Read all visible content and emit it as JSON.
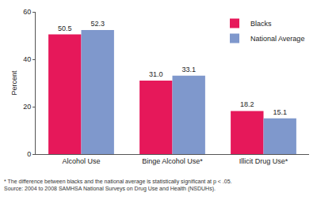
{
  "chart_data": {
    "type": "bar",
    "categories": [
      "Alcohol Use",
      "Binge Alcohol Use*",
      "Illicit Drug Use*"
    ],
    "series": [
      {
        "name": "Blacks",
        "color": "#e6185a",
        "values": [
          50.5,
          31.0,
          18.2
        ],
        "value_labels": [
          "50.5",
          "31.0",
          "18.2"
        ]
      },
      {
        "name": "National Average",
        "color": "#7f98cc",
        "values": [
          52.3,
          33.1,
          15.1
        ],
        "value_labels": [
          "52.3",
          "33.1",
          "15.1"
        ]
      }
    ],
    "y_label": "Percent",
    "ylim": [
      0,
      60
    ],
    "yticks": [
      0,
      20,
      40,
      60
    ],
    "grid": false,
    "legend": "top right",
    "data_labels": true,
    "annotations": [
      "* The difference between blacks and the national average is statistically significant at p < .05.",
      "Source: 2004 to 2008 SAMHSA National Surveys on Drug Use and Health (NSDUHs)."
    ]
  }
}
